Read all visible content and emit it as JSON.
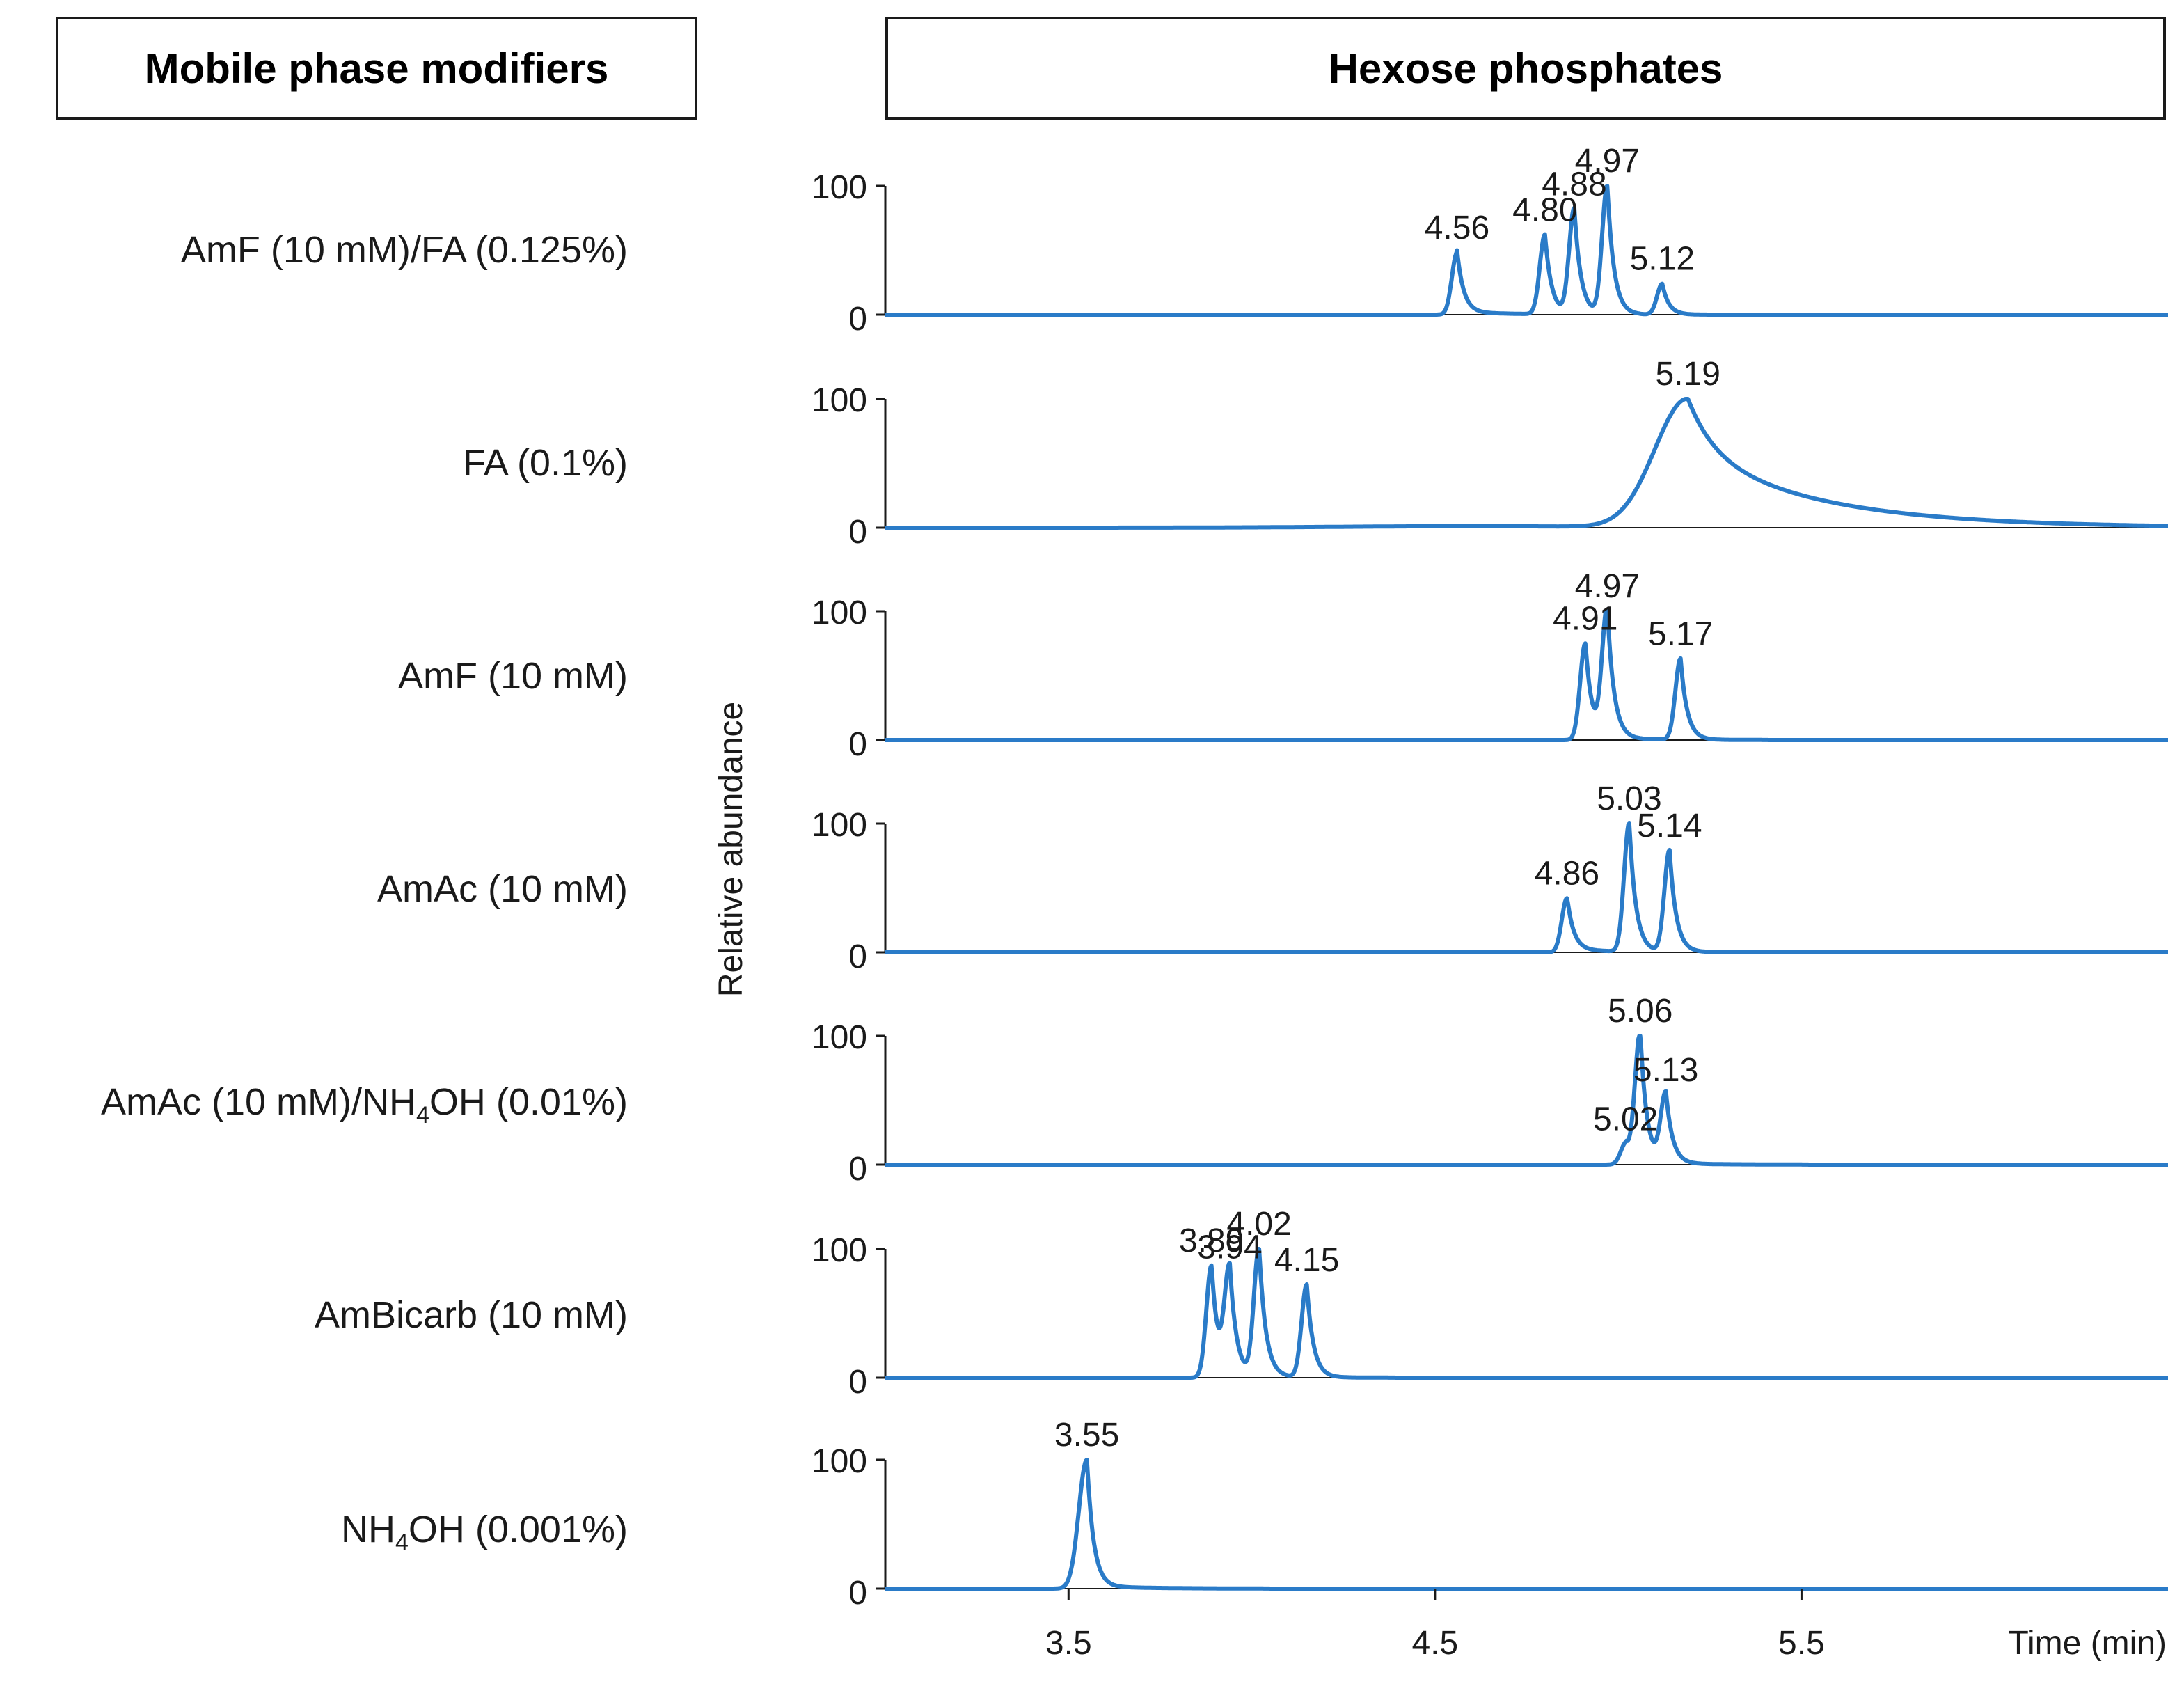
{
  "left_header": "Mobile phase modifiers",
  "chart_data": {
    "type": "line",
    "title": "Hexose phosphates",
    "xlabel": "Time (min)",
    "ylabel": "Relative abundance",
    "xlim": [
      3.0,
      6.5
    ],
    "ylim": [
      0,
      100
    ],
    "x_ticks": [
      "3.5",
      "4.5",
      "5.5"
    ],
    "x_tick_values": [
      3.5,
      4.5,
      5.5
    ],
    "y_ticks": [
      "0",
      "100"
    ],
    "line_color": "#2a7bc8",
    "series": [
      {
        "name": "AmF (10 mM)/FA (0.125%)",
        "label_parts": [
          "AmF (10 mM)/FA (0.125%)"
        ],
        "peaks": [
          {
            "rt": 4.56,
            "height": 48,
            "label": "4.56"
          },
          {
            "rt": 4.8,
            "height": 62,
            "label": "4.80"
          },
          {
            "rt": 4.88,
            "height": 82,
            "label": "4.88"
          },
          {
            "rt": 4.97,
            "height": 100,
            "label": "4.97"
          },
          {
            "rt": 5.12,
            "height": 24,
            "label": "5.12"
          }
        ]
      },
      {
        "name": "FA (0.1%)",
        "label_parts": [
          "FA (0.1%)"
        ],
        "peaks": [
          {
            "rt": 5.19,
            "height": 100,
            "label": "5.19"
          }
        ]
      },
      {
        "name": "AmF (10 mM)",
        "label_parts": [
          "AmF (10 mM)"
        ],
        "peaks": [
          {
            "rt": 4.91,
            "height": 75,
            "label": "4.91"
          },
          {
            "rt": 4.97,
            "height": 100,
            "label": "4.97"
          },
          {
            "rt": 5.17,
            "height": 63,
            "label": "5.17"
          }
        ]
      },
      {
        "name": "AmAc (10 mM)",
        "label_parts": [
          "AmAc (10 mM)"
        ],
        "peaks": [
          {
            "rt": 4.86,
            "height": 42,
            "label": "4.86"
          },
          {
            "rt": 5.03,
            "height": 100,
            "label": "5.03"
          },
          {
            "rt": 5.14,
            "height": 79,
            "label": "5.14"
          }
        ]
      },
      {
        "name": "AmAc (10 mM)/NH4OH (0.01%)",
        "label_parts": [
          "AmAc (10 mM)/NH",
          "4",
          "OH (0.01%)"
        ],
        "peaks": [
          {
            "rt": 5.02,
            "height": 16,
            "label": "5.02"
          },
          {
            "rt": 5.06,
            "height": 100,
            "label": "5.06"
          },
          {
            "rt": 5.13,
            "height": 54,
            "label": "5.13"
          }
        ]
      },
      {
        "name": "AmBicarb (10 mM)",
        "label_parts": [
          "AmBicarb (10 mM)"
        ],
        "peaks": [
          {
            "rt": 3.89,
            "height": 87,
            "label": "3.89"
          },
          {
            "rt": 3.94,
            "height": 82,
            "label": "3.94"
          },
          {
            "rt": 4.02,
            "height": 100,
            "label": "4.02"
          },
          {
            "rt": 4.15,
            "height": 72,
            "label": "4.15"
          }
        ]
      },
      {
        "name": "NH4OH (0.001%)",
        "label_parts": [
          "NH",
          "4",
          "OH (0.001%)"
        ],
        "peaks": [
          {
            "rt": 3.55,
            "height": 100,
            "label": "3.55"
          }
        ]
      }
    ]
  }
}
